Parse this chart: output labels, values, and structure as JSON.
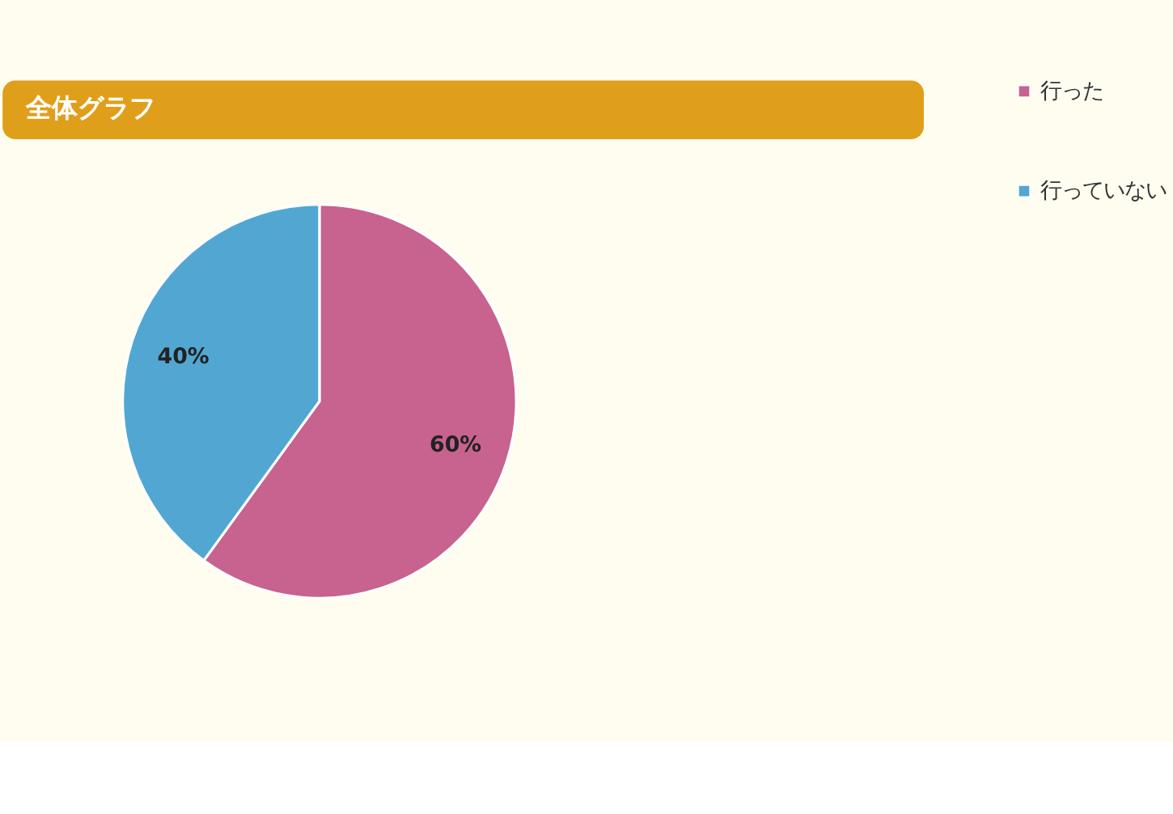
{
  "chart_data": {
    "type": "pie",
    "title": "全体グラフ",
    "categories": [
      "行った",
      "行っていない"
    ],
    "values": [
      60,
      40
    ],
    "colors": [
      "#c8628f",
      "#51a7d2"
    ],
    "value_labels": [
      "60%",
      "40%"
    ],
    "legend": "right"
  }
}
